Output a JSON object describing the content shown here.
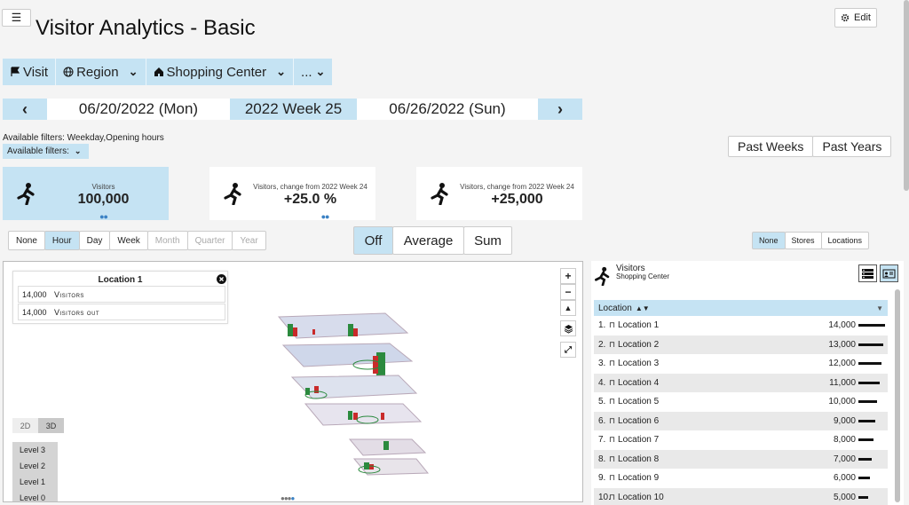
{
  "header": {
    "menu_icon": "☰",
    "title": "Visitor Analytics - Basic",
    "edit_label": "Edit",
    "edit_icon": "gear-icon"
  },
  "breadcrumb": [
    {
      "label": "Visit",
      "icon": "flag-icon"
    },
    {
      "label": "Region",
      "icon": "globe-icon"
    },
    {
      "label": "Shopping Center",
      "icon": "home-icon"
    },
    {
      "label": "...",
      "icon": ""
    }
  ],
  "date_nav": {
    "start": "06/20/2022 (Mon)",
    "week": "2022 Week 25",
    "end": "06/26/2022 (Sun)"
  },
  "filters": {
    "note": "Available filters: Weekday,Opening hours",
    "dropdown": "Available filters:"
  },
  "period": {
    "weeks": "Past Weeks",
    "years": "Past Years"
  },
  "cards": [
    {
      "label": "Visitors",
      "value": "100,000"
    },
    {
      "label": "Visitors, change from 2022 Week 24",
      "value": "+25.0 %"
    },
    {
      "label": "Visitors, change from 2022 Week 24",
      "value": "+25,000"
    }
  ],
  "granularity": [
    "None",
    "Hour",
    "Day",
    "Week",
    "Month",
    "Quarter",
    "Year"
  ],
  "granularity_active": "Hour",
  "aggregation": [
    "Off",
    "Average",
    "Sum"
  ],
  "aggregation_active": "Off",
  "mode": [
    "None",
    "Stores",
    "Locations"
  ],
  "mode_active": "None",
  "popup": {
    "title": "Location 1",
    "rows": [
      {
        "value": "14,000",
        "label": "Visitors"
      },
      {
        "value": "14,000",
        "label": "Visitors out"
      }
    ]
  },
  "map": {
    "view_2d": "2D",
    "view_3d": "3D",
    "levels": [
      "Level 3",
      "Level 2",
      "Level 1",
      "Level 0"
    ]
  },
  "side": {
    "title": "Visitors",
    "subtitle": "Shopping Center",
    "column": "Location",
    "locations": [
      {
        "rank": "1.",
        "name": "Location 1",
        "value": "14,000",
        "num": 14000
      },
      {
        "rank": "2.",
        "name": "Location 2",
        "value": "13,000",
        "num": 13000
      },
      {
        "rank": "3.",
        "name": "Location 3",
        "value": "12,000",
        "num": 12000
      },
      {
        "rank": "4.",
        "name": "Location 4",
        "value": "11,000",
        "num": 11000
      },
      {
        "rank": "5.",
        "name": "Location 5",
        "value": "10,000",
        "num": 10000
      },
      {
        "rank": "6.",
        "name": "Location 6",
        "value": "9,000",
        "num": 9000
      },
      {
        "rank": "7.",
        "name": "Location 7",
        "value": "8,000",
        "num": 8000
      },
      {
        "rank": "8.",
        "name": "Location 8",
        "value": "7,000",
        "num": 7000
      },
      {
        "rank": "9.",
        "name": "Location 9",
        "value": "6,000",
        "num": 6000
      },
      {
        "rank": "10.",
        "name": "Location 10",
        "value": "5,000",
        "num": 5000
      }
    ]
  }
}
